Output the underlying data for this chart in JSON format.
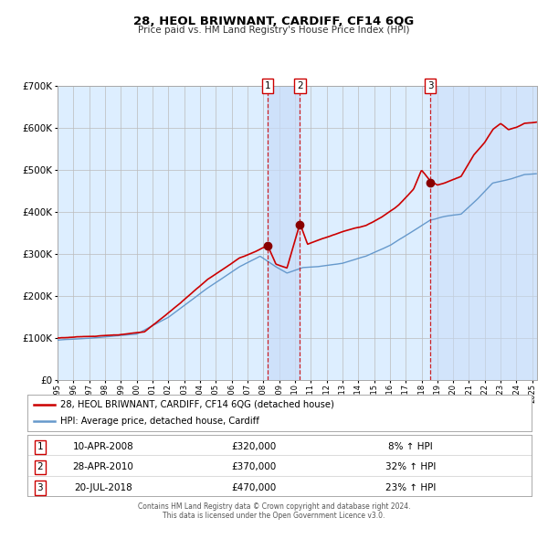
{
  "title": "28, HEOL BRIWNANT, CARDIFF, CF14 6QG",
  "subtitle": "Price paid vs. HM Land Registry's House Price Index (HPI)",
  "legend_line1": "28, HEOL BRIWNANT, CARDIFF, CF14 6QG (detached house)",
  "legend_line2": "HPI: Average price, detached house, Cardiff",
  "red_color": "#cc0000",
  "blue_color": "#6699cc",
  "bg_color": "#ddeeff",
  "sale_events": [
    {
      "num": 1,
      "date": "10-APR-2008",
      "price": 320000,
      "pct": "8%",
      "dir": "↑",
      "x_year": 2008.27
    },
    {
      "num": 2,
      "date": "28-APR-2010",
      "price": 370000,
      "pct": "32%",
      "dir": "↑",
      "x_year": 2010.32
    },
    {
      "num": 3,
      "date": "20-JUL-2018",
      "price": 470000,
      "pct": "23%",
      "dir": "↑",
      "x_year": 2018.55
    }
  ],
  "ylim": [
    0,
    700000
  ],
  "xlim_start": 1995.0,
  "xlim_end": 2025.3,
  "footer": "Contains HM Land Registry data © Crown copyright and database right 2024.\nThis data is licensed under the Open Government Licence v3.0."
}
